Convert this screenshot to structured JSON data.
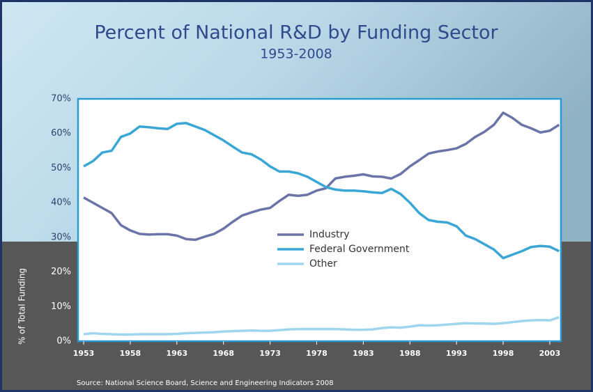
{
  "chart_data": {
    "type": "line",
    "title": "Percent of National R&D by Funding Sector",
    "subtitle": "1953-2008",
    "y_label": "% of Total Funding",
    "source": "Source: National Science Board, Science and Engineering Indicators 2008",
    "legend": "center",
    "x": [
      1953,
      1954,
      1955,
      1956,
      1957,
      1958,
      1959,
      1960,
      1961,
      1962,
      1963,
      1964,
      1965,
      1966,
      1967,
      1968,
      1969,
      1970,
      1971,
      1972,
      1973,
      1974,
      1975,
      1976,
      1977,
      1978,
      1979,
      1980,
      1981,
      1982,
      1983,
      1984,
      1985,
      1986,
      1987,
      1988,
      1989,
      1990,
      1991,
      1992,
      1993,
      1994,
      1995,
      1996,
      1997,
      1998,
      1999,
      2000,
      2001,
      2002,
      2003,
      2004
    ],
    "xlim": [
      1952.4,
      2004.2
    ],
    "xticks": [
      1953,
      1958,
      1963,
      1968,
      1973,
      1978,
      1983,
      1988,
      1993,
      1998,
      2003
    ],
    "ylim": [
      0,
      70
    ],
    "yticks": [
      {
        "value": 0,
        "label": "0%"
      },
      {
        "value": 10,
        "label": "10%"
      },
      {
        "value": 20,
        "label": "20%"
      },
      {
        "value": 30,
        "label": "30%"
      },
      {
        "value": 40,
        "label": "40%"
      },
      {
        "value": 50,
        "label": "50%"
      },
      {
        "value": 60,
        "label": "60%"
      },
      {
        "value": 70,
        "label": "70%"
      }
    ],
    "series": [
      {
        "name": "Industry",
        "color": "#6b74a8",
        "values": [
          41.5,
          40,
          38.5,
          37,
          33.5,
          32,
          31,
          30.8,
          30.9,
          30.9,
          30.5,
          29.5,
          29.3,
          30.2,
          31,
          32.5,
          34.5,
          36.3,
          37.2,
          38,
          38.5,
          40.5,
          42.3,
          42,
          42.3,
          43.5,
          44.2,
          47,
          47.5,
          47.8,
          48.2,
          47.6,
          47.5,
          47,
          48.3,
          50.5,
          52.3,
          54.2,
          54.8,
          55.2,
          55.7,
          57,
          59,
          60.5,
          62.5,
          66,
          64.5,
          62.5,
          61.5,
          60.3,
          60.8,
          62.5
        ]
      },
      {
        "name": "Federal Government",
        "color": "#3aa6d6",
        "values": [
          50.5,
          52,
          54.5,
          55,
          59,
          60,
          62,
          61.8,
          61.5,
          61.3,
          62.8,
          63,
          62,
          61,
          59.5,
          58,
          56.2,
          54.5,
          54,
          52.5,
          50.5,
          49,
          49,
          48.5,
          47.5,
          46,
          44.5,
          43.8,
          43.5,
          43.5,
          43.3,
          43,
          42.8,
          44,
          42.5,
          40,
          37,
          35,
          34.5,
          34.3,
          33.2,
          30.5,
          29.5,
          28,
          26.5,
          24,
          25,
          26,
          27.2,
          27.5,
          27.3,
          26
        ]
      },
      {
        "name": "Other",
        "color": "#9fd6ef",
        "values": [
          2,
          2.3,
          2.1,
          2.0,
          1.9,
          1.9,
          2.0,
          2.0,
          2.0,
          2.0,
          2.1,
          2.3,
          2.4,
          2.5,
          2.6,
          2.8,
          2.9,
          3.0,
          3.1,
          3.0,
          3.0,
          3.2,
          3.4,
          3.5,
          3.5,
          3.5,
          3.5,
          3.5,
          3.4,
          3.3,
          3.3,
          3.4,
          3.8,
          4.0,
          3.9,
          4.2,
          4.6,
          4.5,
          4.6,
          4.8,
          5.0,
          5.2,
          5.1,
          5.1,
          5.0,
          5.2,
          5.5,
          5.8,
          6.0,
          6.1,
          6.0,
          6.9
        ]
      }
    ]
  }
}
